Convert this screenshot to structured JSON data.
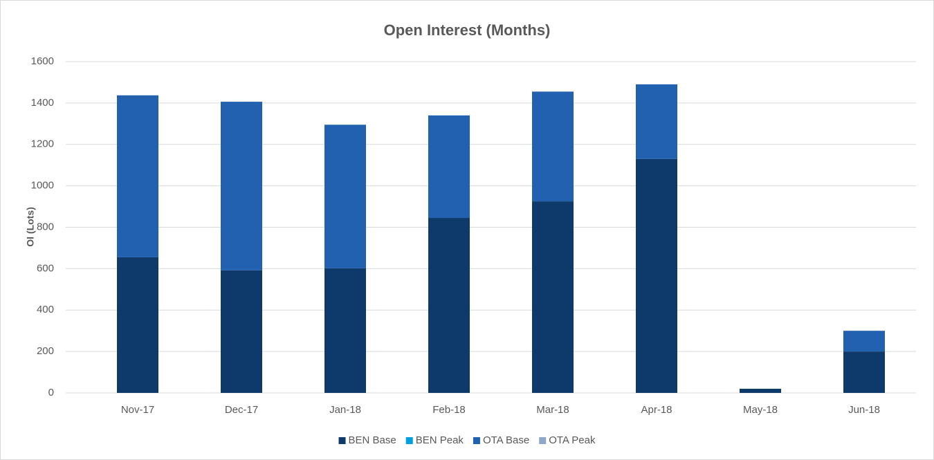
{
  "chart_data": {
    "type": "stacked_bar",
    "title": "Open Interest (Months)",
    "y_label": "OI (Lots)",
    "categories": [
      "Nov-17",
      "Dec-17",
      "Jan-18",
      "Feb-18",
      "Mar-18",
      "Apr-18",
      "May-18",
      "Jun-18"
    ],
    "series": [
      {
        "name": "BEN Base",
        "color": "#0e3a6b",
        "values": [
          655,
          592,
          602,
          845,
          925,
          1130,
          20,
          200
        ]
      },
      {
        "name": "BEN Peak",
        "color": "#00a0e0",
        "values": [
          0,
          0,
          0,
          0,
          0,
          0,
          0,
          0
        ]
      },
      {
        "name": "OTA Base",
        "color": "#2260b0",
        "values": [
          782,
          814,
          693,
          495,
          530,
          360,
          0,
          100
        ]
      },
      {
        "name": "OTA Peak",
        "color": "#8fa8c8",
        "values": [
          0,
          0,
          0,
          0,
          0,
          0,
          0,
          0
        ]
      }
    ],
    "ylim": [
      0,
      1600
    ],
    "yticks": [
      0,
      200,
      400,
      600,
      800,
      1000,
      1200,
      1400,
      1600
    ],
    "grid": true,
    "legend": "bottom"
  }
}
